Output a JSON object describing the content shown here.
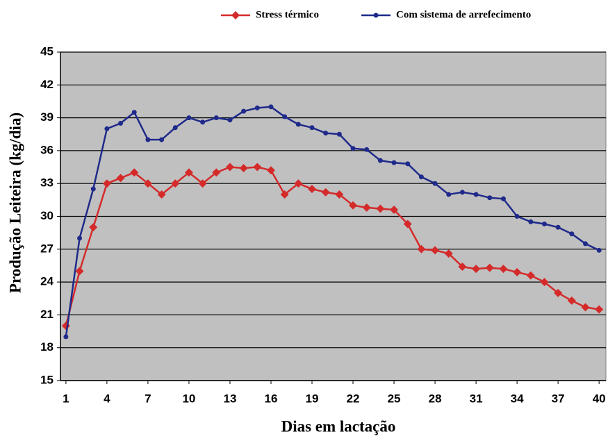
{
  "chart_data": {
    "type": "line",
    "x_label": "Dias em lactação",
    "y_label": "Produção Leiteira (kg/dia)",
    "x": [
      1,
      2,
      3,
      4,
      5,
      6,
      7,
      8,
      9,
      10,
      11,
      12,
      13,
      14,
      15,
      16,
      17,
      18,
      19,
      20,
      21,
      22,
      23,
      24,
      25,
      26,
      27,
      28,
      29,
      30,
      31,
      32,
      33,
      34,
      35,
      36,
      37,
      38,
      39,
      40
    ],
    "series": [
      {
        "name": "Stress térmico",
        "color": "#d42a2a",
        "marker": "diamond",
        "values": [
          20,
          25,
          29,
          33,
          33.5,
          34,
          33,
          32,
          33,
          34,
          33,
          34,
          34.5,
          34.4,
          34.5,
          34.2,
          32,
          33,
          32.5,
          32.2,
          32,
          31,
          30.8,
          30.7,
          30.6,
          29.3,
          27,
          26.9,
          26.6,
          25.4,
          25.2,
          25.3,
          25.2,
          24.9,
          24.6,
          24,
          23,
          22.3,
          21.7,
          21.5
        ]
      },
      {
        "name": "Com sistema de arrefecimento",
        "color": "#1f2a8a",
        "marker": "circle",
        "values": [
          19,
          28,
          32.5,
          38,
          38.5,
          39.5,
          37,
          37,
          38.1,
          39,
          38.6,
          39,
          38.8,
          39.6,
          39.9,
          40,
          39.1,
          38.4,
          38.1,
          37.6,
          37.5,
          36.2,
          36.1,
          35.1,
          34.9,
          34.8,
          33.6,
          33,
          32,
          32.2,
          32,
          31.7,
          31.6,
          30,
          29.5,
          29.3,
          29,
          28.4,
          27.5,
          26.9
        ]
      }
    ],
    "xlim": [
      0.6,
      40.5
    ],
    "xticks": [
      1,
      4,
      7,
      10,
      13,
      16,
      19,
      22,
      25,
      28,
      31,
      34,
      37,
      40
    ],
    "ylim": [
      15,
      45
    ],
    "yticks": [
      15,
      18,
      21,
      24,
      27,
      30,
      33,
      36,
      39,
      42,
      45
    ],
    "grid": true,
    "legend": "top",
    "plot_background": "#c0c0c0"
  }
}
